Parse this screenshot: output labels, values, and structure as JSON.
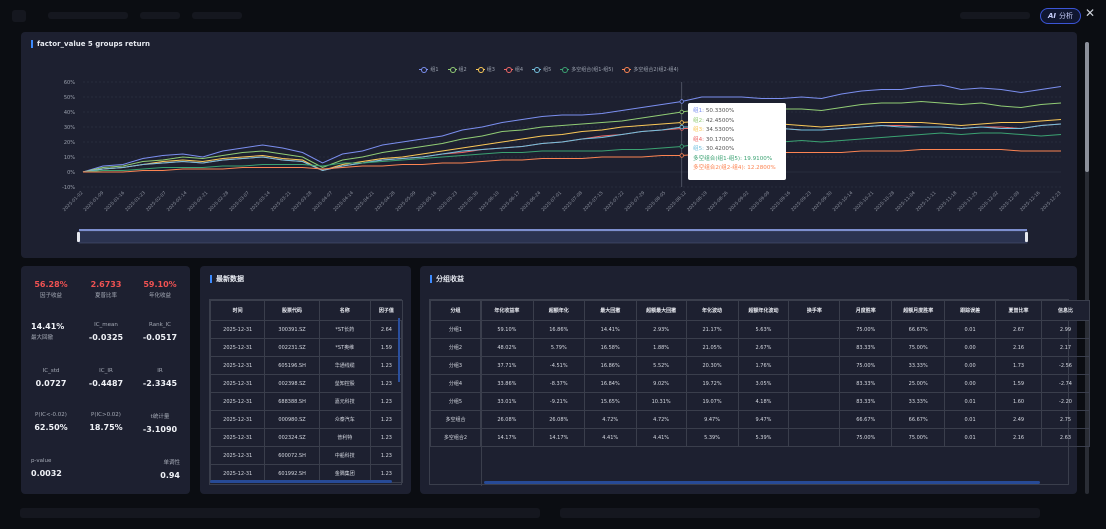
{
  "header": {
    "ai_button_label": "分析",
    "ai_icon": "AI"
  },
  "chart_panel": {
    "title": "factor_value 5 groups return",
    "legend": [
      "组1",
      "组2",
      "组3",
      "组4",
      "组5",
      "多空组合(组1-组5)",
      "多空组合2(组2-组4)"
    ]
  },
  "chart_data": {
    "type": "line",
    "title": "factor_value 5 groups return",
    "y_ticks": [
      "60%",
      "50%",
      "40%",
      "30%",
      "20%",
      "10%",
      "0%",
      "-10%"
    ],
    "ylim": [
      -10,
      60
    ],
    "x_ticks": [
      "2025-01-02",
      "2025-01-09",
      "2025-01-16",
      "2025-01-23",
      "2025-02-07",
      "2025-02-14",
      "2025-02-21",
      "2025-02-28",
      "2025-03-07",
      "2025-03-14",
      "2025-03-21",
      "2025-03-28",
      "2025-04-07",
      "2025-04-14",
      "2025-04-21",
      "2025-04-28",
      "2025-05-09",
      "2025-05-16",
      "2025-05-23",
      "2025-05-30",
      "2025-06-10",
      "2025-06-17",
      "2025-06-24",
      "2025-07-01",
      "2025-07-08",
      "2025-07-15",
      "2025-07-22",
      "2025-07-29",
      "2025-08-05",
      "2025-08-12",
      "2025-08-19",
      "2025-08-26",
      "2025-09-02",
      "2025-09-09",
      "2025-09-16",
      "2025-09-23",
      "2025-09-30",
      "2025-10-14",
      "2025-10-21",
      "2025-10-28",
      "2025-11-04",
      "2025-11-11",
      "2025-11-18",
      "2025-11-25",
      "2025-12-02",
      "2025-12-09",
      "2025-12-16",
      "2025-12-23"
    ],
    "series": [
      {
        "name": "组1",
        "color": "#7b8ff0",
        "values": [
          0,
          4,
          5,
          9,
          11,
          12,
          10,
          14,
          16,
          18,
          16,
          13,
          6,
          12,
          14,
          18,
          20,
          22,
          24,
          28,
          30,
          33,
          35,
          37,
          38,
          38,
          39,
          41,
          43,
          45,
          47,
          50,
          50,
          50,
          49,
          49,
          50,
          49,
          52,
          54,
          55,
          55,
          57,
          58,
          55,
          56,
          55,
          53,
          55,
          57
        ]
      },
      {
        "name": "组2",
        "color": "#91cc75",
        "values": [
          0,
          3,
          4,
          7,
          8,
          10,
          9,
          11,
          13,
          14,
          12,
          10,
          3,
          8,
          10,
          13,
          15,
          17,
          19,
          22,
          24,
          27,
          28,
          30,
          31,
          32,
          33,
          34,
          36,
          38,
          40,
          42,
          42,
          42,
          42,
          42,
          42,
          41,
          43,
          45,
          46,
          46,
          47,
          46,
          45,
          46,
          44,
          43,
          45,
          46
        ]
      },
      {
        "name": "组3",
        "color": "#fac858",
        "values": [
          0,
          2,
          3,
          5,
          7,
          8,
          7,
          9,
          10,
          11,
          9,
          8,
          1,
          5,
          7,
          9,
          10,
          12,
          14,
          16,
          18,
          20,
          22,
          24,
          25,
          27,
          28,
          30,
          31,
          32,
          33,
          34,
          34,
          33,
          32,
          32,
          31,
          30,
          31,
          32,
          33,
          33,
          33,
          32,
          31,
          32,
          33,
          33,
          34,
          35
        ]
      },
      {
        "name": "组4",
        "color": "#ee6666",
        "values": [
          0,
          2,
          3,
          5,
          6,
          7,
          6,
          8,
          9,
          10,
          8,
          7,
          1,
          4,
          6,
          8,
          9,
          10,
          12,
          13,
          15,
          16,
          17,
          19,
          20,
          22,
          24,
          25,
          27,
          28,
          29,
          29,
          30,
          30,
          29,
          29,
          28,
          28,
          29,
          30,
          31,
          31,
          30,
          30,
          29,
          30,
          30,
          29,
          31,
          32
        ]
      },
      {
        "name": "组5",
        "color": "#73c0de",
        "values": [
          0,
          2,
          3,
          5,
          6,
          7,
          6,
          8,
          9,
          10,
          8,
          7,
          1,
          4,
          6,
          8,
          9,
          10,
          12,
          14,
          15,
          16,
          17,
          19,
          20,
          22,
          23,
          25,
          27,
          28,
          30,
          30,
          30,
          30,
          29,
          29,
          28,
          28,
          29,
          30,
          31,
          30,
          30,
          30,
          29,
          30,
          29,
          29,
          31,
          32
        ]
      },
      {
        "name": "多空组合(组1-组5)",
        "color": "#3ba272",
        "values": [
          0,
          1,
          1,
          2,
          3,
          3,
          3,
          4,
          4,
          5,
          5,
          5,
          4,
          6,
          6,
          7,
          8,
          9,
          10,
          11,
          12,
          13,
          13,
          14,
          14,
          14,
          14,
          15,
          15,
          16,
          17,
          19,
          20,
          20,
          20,
          20,
          21,
          20,
          21,
          22,
          23,
          24,
          25,
          26,
          25,
          26,
          26,
          25,
          24,
          25
        ]
      },
      {
        "name": "多空组合2(组2-组4)",
        "color": "#fc8452",
        "values": [
          0,
          0,
          0,
          1,
          1,
          2,
          2,
          2,
          3,
          3,
          3,
          3,
          2,
          3,
          4,
          4,
          5,
          5,
          6,
          6,
          7,
          8,
          8,
          9,
          9,
          9,
          10,
          10,
          10,
          11,
          11,
          12,
          12,
          12,
          12,
          13,
          13,
          13,
          13,
          14,
          14,
          14,
          15,
          15,
          15,
          15,
          15,
          14,
          14,
          14
        ]
      }
    ],
    "grid": true,
    "legend_position": "top-center"
  },
  "tooltip": {
    "lines": [
      {
        "text": "组1: 50.3300%",
        "color": "#7b8ff0"
      },
      {
        "text": "组2: 42.4500%",
        "color": "#91cc75"
      },
      {
        "text": "组3: 34.5300%",
        "color": "#fac858"
      },
      {
        "text": "组4: 30.1700%",
        "color": "#ee6666"
      },
      {
        "text": "组5: 30.4200%",
        "color": "#73c0de"
      },
      {
        "text": "多空组合(组1-组5): 19.9100%",
        "color": "#3ba272"
      },
      {
        "text": "多空组合2(组2-组4): 12.2800%",
        "color": "#fc8452"
      }
    ]
  },
  "stats": [
    {
      "value": "56.28%",
      "label": "因子收益",
      "red": true
    },
    {
      "value": "2.6733",
      "label": "夏普比率",
      "red": true
    },
    {
      "value": "59.10%",
      "label": "年化收益",
      "red": true
    },
    {
      "value": "14.41%",
      "label": "最大回撤",
      "red": false
    },
    {
      "value": "-0.0325",
      "label": "IC_mean",
      "red": false,
      "label_top": true
    },
    {
      "value": "-0.0517",
      "label": "Rank_IC",
      "red": false,
      "label_top": true
    },
    {
      "value": "0.0727",
      "label": "IC_std",
      "red": false,
      "label_top": true
    },
    {
      "value": "-0.4487",
      "label": "IC_IR",
      "red": false,
      "label_top": true
    },
    {
      "value": "-2.3345",
      "label": "IR",
      "red": false,
      "label_top": true
    },
    {
      "value": "62.50%",
      "label": "P(IC<-0.02)",
      "red": false,
      "label_top": true
    },
    {
      "value": "18.75%",
      "label": "P(IC>0.02)",
      "red": false,
      "label_top": true
    },
    {
      "value": "-3.1090",
      "label": "t统计量",
      "red": false,
      "label_top": true
    },
    {
      "value": "0.0032",
      "label": "p-value",
      "red": false,
      "label_top": true
    },
    {
      "value": "0.94",
      "label": "单调性",
      "red": false,
      "label_top": true
    }
  ],
  "latest_panel": {
    "title": "最新数据",
    "headers": [
      "时间",
      "股票代码",
      "名称",
      "因子值"
    ],
    "rows": [
      [
        "2025-12-31",
        "300391.SZ",
        "*ST长药",
        "2.64"
      ],
      [
        "2025-12-31",
        "002231.SZ",
        "*ST奥维",
        "1.59"
      ],
      [
        "2025-12-31",
        "605196.SH",
        "华通线缆",
        "1.23"
      ],
      [
        "2025-12-31",
        "002398.SZ",
        "垒知控股",
        "1.23"
      ],
      [
        "2025-12-31",
        "688388.SH",
        "嘉元科技",
        "1.23"
      ],
      [
        "2025-12-31",
        "000980.SZ",
        "众泰汽车",
        "1.23"
      ],
      [
        "2025-12-31",
        "002324.SZ",
        "普利特",
        "1.23"
      ],
      [
        "2025-12-31",
        "600072.SH",
        "中船科技",
        "1.23"
      ],
      [
        "2025-12-31",
        "601992.SH",
        "金隅集团",
        "1.23"
      ]
    ]
  },
  "group_panel": {
    "title": "分组收益",
    "headers": [
      "分组",
      "年化收益率",
      "超额年化",
      "最大回撤",
      "超额最大回撤",
      "年化波动",
      "超额年化波动",
      "换手率",
      "月度胜率",
      "超额月度胜率",
      "跟踪误差",
      "夏普比率",
      "信息比"
    ],
    "rows": [
      [
        "分组1",
        "59.10%",
        "16.86%",
        "14.41%",
        "2.93%",
        "21.17%",
        "5.63%",
        "",
        "75.00%",
        "66.67%",
        "0.01",
        "2.67",
        "2.99"
      ],
      [
        "分组2",
        "48.02%",
        "5.79%",
        "16.58%",
        "1.88%",
        "21.05%",
        "2.67%",
        "",
        "83.33%",
        "75.00%",
        "0.00",
        "2.16",
        "2.17"
      ],
      [
        "分组3",
        "37.71%",
        "-4.51%",
        "16.86%",
        "5.52%",
        "20.30%",
        "1.76%",
        "",
        "75.00%",
        "33.33%",
        "0.00",
        "1.73",
        "-2.56"
      ],
      [
        "分组4",
        "33.86%",
        "-8.37%",
        "16.84%",
        "9.02%",
        "19.72%",
        "3.05%",
        "",
        "83.33%",
        "25.00%",
        "0.00",
        "1.59",
        "-2.74"
      ],
      [
        "分组5",
        "33.01%",
        "-9.21%",
        "15.65%",
        "10.31%",
        "19.07%",
        "4.18%",
        "",
        "83.33%",
        "33.33%",
        "0.01",
        "1.60",
        "-2.20"
      ],
      [
        "多空组合",
        "26.08%",
        "26.08%",
        "4.72%",
        "4.72%",
        "9.47%",
        "9.47%",
        "",
        "66.67%",
        "66.67%",
        "0.01",
        "2.49",
        "2.75"
      ],
      [
        "多空组合2",
        "14.17%",
        "14.17%",
        "4.41%",
        "4.41%",
        "5.39%",
        "5.39%",
        "",
        "75.00%",
        "75.00%",
        "0.01",
        "2.16",
        "2.63"
      ]
    ]
  }
}
